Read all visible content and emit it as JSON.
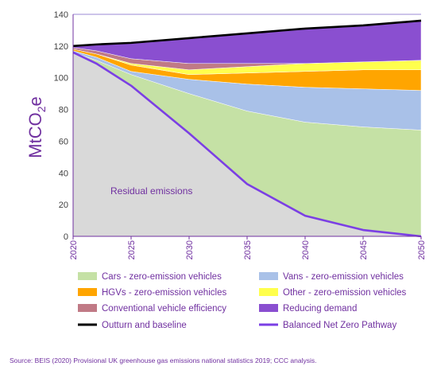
{
  "chart_data": {
    "type": "area",
    "ylabel_main": "MtCO",
    "ylabel_sub": "2",
    "ylabel_tail": "e",
    "ylim": [
      0,
      140
    ],
    "yticks": [
      "0",
      "20",
      "40",
      "60",
      "80",
      "100",
      "120",
      "140"
    ],
    "xlim": [
      2020,
      2050
    ],
    "xticks": [
      "2020",
      "2025",
      "2030",
      "2035",
      "2040",
      "2045",
      "2050"
    ],
    "grid": true,
    "legend_position": "bottom",
    "annotation": "Residual emissions",
    "x": [
      2020,
      2022,
      2025,
      2030,
      2035,
      2040,
      2045,
      2050
    ],
    "stacked_layers": [
      {
        "name": "Residual emissions",
        "color": "#d9d9d9",
        "upper": [
          116,
          109,
          95,
          65,
          33,
          13,
          4,
          0
        ]
      },
      {
        "name": "Cars - zero-emission vehicles",
        "color": "#c5e1a5",
        "upper": [
          116,
          111,
          102,
          90,
          79,
          72,
          69,
          67
        ]
      },
      {
        "name": "Vans - zero-emission vehicles",
        "color": "#a9c1e8",
        "upper": [
          117,
          113,
          104,
          99,
          96,
          94,
          93,
          92
        ]
      },
      {
        "name": "HGVs - zero-emission vehicles",
        "color": "#ffa500",
        "upper": [
          118,
          115,
          108,
          102,
          103,
          104,
          105,
          105
        ]
      },
      {
        "name": "Other - zero-emission vehicles",
        "color": "#ffff4d",
        "upper": [
          118,
          115,
          109,
          105,
          107,
          109,
          110,
          111
        ]
      },
      {
        "name": "Conventional vehicle efficiency",
        "color": "#c07a86",
        "upper": [
          119,
          117,
          112,
          109,
          109,
          109,
          110,
          111
        ]
      },
      {
        "name": "Reducing demand",
        "color": "#8a4fd0",
        "upper": [
          120,
          121,
          122,
          125,
          128,
          131,
          133,
          136
        ]
      }
    ],
    "lines": [
      {
        "name": "Outturn and baseline",
        "color": "#000000",
        "values": [
          120,
          121,
          122,
          125,
          128,
          131,
          133,
          136
        ]
      },
      {
        "name": "Balanced Net Zero Pathway",
        "color": "#7b3fe4",
        "values": [
          116,
          109,
          95,
          65,
          33,
          13,
          4,
          0
        ]
      }
    ],
    "legend": [
      {
        "name": "Cars - zero-emission vehicles",
        "kind": "box",
        "color": "#c5e1a5"
      },
      {
        "name": "Vans - zero-emission vehicles",
        "kind": "box",
        "color": "#a9c1e8"
      },
      {
        "name": "HGVs - zero-emission vehicles",
        "kind": "box",
        "color": "#ffa500"
      },
      {
        "name": "Other - zero-emission vehicles",
        "kind": "box",
        "color": "#ffff4d"
      },
      {
        "name": "Conventional vehicle efficiency",
        "kind": "box",
        "color": "#c07a86"
      },
      {
        "name": "Reducing demand",
        "kind": "box",
        "color": "#8a4fd0"
      },
      {
        "name": "Outturn and baseline",
        "kind": "line",
        "color": "#000000"
      },
      {
        "name": "Balanced Net Zero Pathway",
        "kind": "line",
        "color": "#7b3fe4"
      }
    ]
  },
  "source": "Source: BEIS (2020) Provisional UK greenhouse gas emissions national statistics 2019; CCC analysis."
}
